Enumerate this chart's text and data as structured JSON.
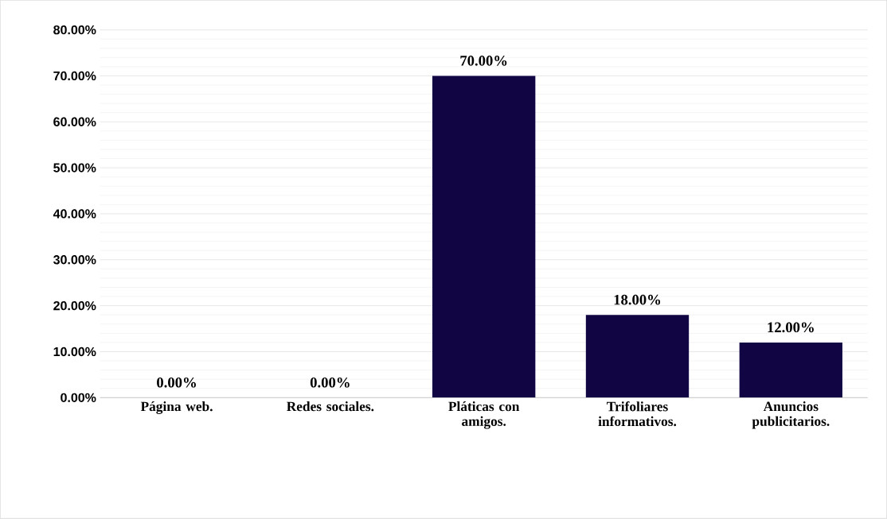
{
  "chart_data": {
    "type": "bar",
    "categories": [
      "Página web.",
      "Redes sociales.",
      "Pláticas con amigos.",
      "Trifoliares informativos.",
      "Anuncios publicitarios."
    ],
    "values": [
      0,
      0,
      70,
      18,
      12
    ],
    "color": "#110544",
    "value_labels": [
      "0.00%",
      "0.00%",
      "70.00%",
      "18.00%",
      "12.00%"
    ],
    "ylim": [
      0,
      80
    ],
    "yticks": [
      {
        "value": 0,
        "label": "0.00%"
      },
      {
        "value": 10,
        "label": "10.00%"
      },
      {
        "value": 20,
        "label": "20.00%"
      },
      {
        "value": 30,
        "label": "30.00%"
      },
      {
        "value": 40,
        "label": "40.00%"
      },
      {
        "value": 50,
        "label": "50.00%"
      },
      {
        "value": 60,
        "label": "60.00%"
      },
      {
        "value": 70,
        "label": "70.00%"
      },
      {
        "value": 80,
        "label": "80.00%"
      }
    ],
    "grid": "y"
  }
}
